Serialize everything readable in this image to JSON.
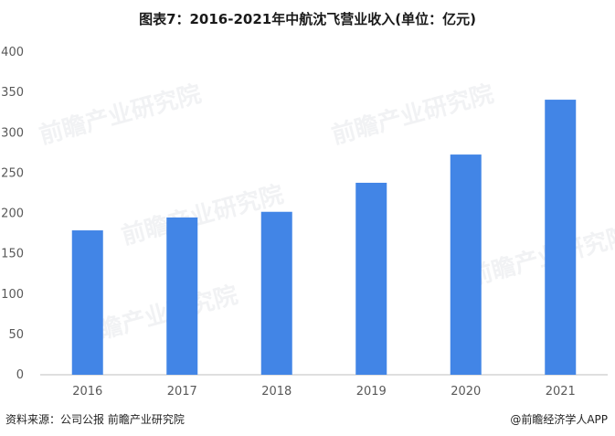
{
  "title": "图表7：2016-2021年中航沈飞营业收入(单位：亿元)",
  "footer": {
    "source": "资料来源：公司公报 前瞻产业研究院",
    "credit": "@前瞻经济学人APP"
  },
  "watermark": "前瞻产业研究院",
  "colors": {
    "bar": "#4285e6",
    "axis": "#bfbfbf",
    "tick_text": "#595959"
  },
  "chart_data": {
    "type": "bar",
    "title": "图表7：2016-2021年中航沈飞营业收入(单位：亿元)",
    "categories": [
      "2016",
      "2017",
      "2018",
      "2019",
      "2020",
      "2021"
    ],
    "values": [
      179,
      195,
      202,
      238,
      273,
      341
    ],
    "ylim": [
      0,
      400
    ],
    "yticks": [
      0,
      50,
      100,
      150,
      200,
      250,
      300,
      350,
      400
    ],
    "xlabel": "",
    "ylabel": "",
    "grid": false,
    "legend": "none"
  }
}
